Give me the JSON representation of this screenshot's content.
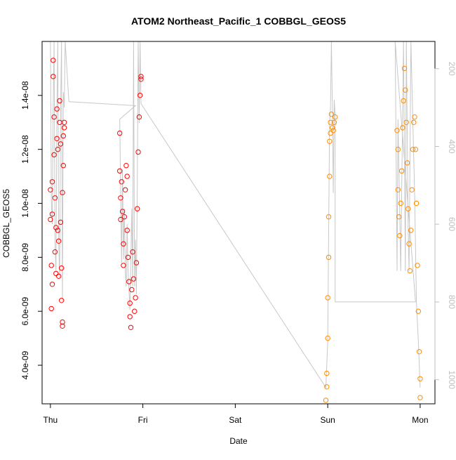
{
  "chart_data": {
    "type": "scatter",
    "title": "ATOM2 Northeast_Pacific_1 COBBGL_GEOS5",
    "xlabel": "Date",
    "ylabel": "COBBGL_GEOS5",
    "x_ticks": [
      {
        "label": "Thu",
        "value": 0
      },
      {
        "label": "Fri",
        "value": 1
      },
      {
        "label": "Sat",
        "value": 2
      },
      {
        "label": "Sun",
        "value": 3
      },
      {
        "label": "Mon",
        "value": 4
      }
    ],
    "x_unit": "days since Thursday 00:00",
    "xlim": [
      -0.09,
      4.16
    ],
    "y_left": {
      "ticks": [
        {
          "label": "4.0e-09",
          "value": 4e-09
        },
        {
          "label": "6.0e-09",
          "value": 6e-09
        },
        {
          "label": "8.0e-09",
          "value": 8e-09
        },
        {
          "label": "1.0e-08",
          "value": 1e-08
        },
        {
          "label": "1.2e-08",
          "value": 1.2e-08
        },
        {
          "label": "1.4e-08",
          "value": 1.4e-08
        }
      ],
      "ylim": [
        2.57e-09,
        1.6e-08
      ]
    },
    "y_right": {
      "label": "",
      "ticks": [
        {
          "label": "200",
          "value": 200
        },
        {
          "label": "400",
          "value": 400
        },
        {
          "label": "600",
          "value": 600
        },
        {
          "label": "800",
          "value": 800
        },
        {
          "label": "1000",
          "value": 1000
        }
      ],
      "ylim": [
        1062,
        130
      ],
      "color": "#bfbfbf"
    },
    "grid": false,
    "legend": "none",
    "colors": {
      "series_red": "#ff0000",
      "series_orange": "#ff8c00",
      "altitude_line": "#c8c8c8",
      "axis": "#000000"
    },
    "series": [
      {
        "color": "#ff0000",
        "values": [
          [
            0.0,
            9.4e-09
          ],
          [
            0.0,
            1.05e-08
          ],
          [
            0.01,
            7.7e-09
          ],
          [
            0.01,
            6.1e-09
          ],
          [
            0.02,
            7e-09
          ],
          [
            0.02,
            9.6e-09
          ],
          [
            0.02,
            1.08e-08
          ],
          [
            0.03,
            1.53e-08
          ],
          [
            0.03,
            1.47e-08
          ],
          [
            0.04,
            1.32e-08
          ],
          [
            0.04,
            1.18e-08
          ],
          [
            0.05,
            1.02e-08
          ],
          [
            0.05,
            8.2e-09
          ],
          [
            0.06,
            7.4e-09
          ],
          [
            0.06,
            9.1e-09
          ],
          [
            0.07,
            1.24e-08
          ],
          [
            0.07,
            1.35e-08
          ],
          [
            0.08,
            1.2e-08
          ],
          [
            0.08,
            9e-09
          ],
          [
            0.09,
            7.3e-09
          ],
          [
            0.09,
            8.6e-09
          ],
          [
            0.1,
            1.3e-08
          ],
          [
            0.1,
            1.38e-08
          ],
          [
            0.11,
            1.22e-08
          ],
          [
            0.11,
            9.3e-09
          ],
          [
            0.12,
            7.6e-09
          ],
          [
            0.12,
            6.4e-09
          ],
          [
            0.13,
            5.6e-09
          ],
          [
            0.13,
            5.45e-09
          ],
          [
            0.13,
            1.04e-08
          ],
          [
            0.14,
            1.14e-08
          ],
          [
            0.14,
            1.25e-08
          ],
          [
            0.15,
            1.28e-08
          ],
          [
            0.15,
            1.3e-08
          ],
          [
            0.75,
            1.26e-08
          ],
          [
            0.75,
            1.12e-08
          ],
          [
            0.76,
            1.02e-08
          ],
          [
            0.76,
            9.4e-09
          ],
          [
            0.77,
            1.08e-08
          ],
          [
            0.78,
            9.7e-09
          ],
          [
            0.79,
            8.5e-09
          ],
          [
            0.79,
            7.7e-09
          ],
          [
            0.8,
            9.5e-09
          ],
          [
            0.81,
            1.05e-08
          ],
          [
            0.82,
            1.14e-08
          ],
          [
            0.83,
            1.1e-08
          ],
          [
            0.83,
            9e-09
          ],
          [
            0.84,
            8e-09
          ],
          [
            0.85,
            7.1e-09
          ],
          [
            0.86,
            6.3e-09
          ],
          [
            0.86,
            5.8e-09
          ],
          [
            0.87,
            5.4e-09
          ],
          [
            0.88,
            6.8e-09
          ],
          [
            0.89,
            8.2e-09
          ],
          [
            0.9,
            7.2e-09
          ],
          [
            0.91,
            6e-09
          ],
          [
            0.92,
            6.5e-09
          ],
          [
            0.93,
            7.8e-09
          ],
          [
            0.94,
            9.8e-09
          ],
          [
            0.95,
            1.19e-08
          ],
          [
            0.96,
            1.32e-08
          ],
          [
            0.97,
            1.4e-08
          ],
          [
            0.98,
            1.47e-08
          ],
          [
            0.98,
            1.46e-08
          ]
        ]
      },
      {
        "color": "#ff8c00",
        "values": [
          [
            2.98,
            2.7e-09
          ],
          [
            2.99,
            3.2e-09
          ],
          [
            2.99,
            3.7e-09
          ],
          [
            3.0,
            5e-09
          ],
          [
            3.0,
            6.5e-09
          ],
          [
            3.01,
            8e-09
          ],
          [
            3.01,
            9.5e-09
          ],
          [
            3.02,
            1.1e-08
          ],
          [
            3.02,
            1.23e-08
          ],
          [
            3.03,
            1.26e-08
          ],
          [
            3.03,
            1.3e-08
          ],
          [
            3.04,
            1.33e-08
          ],
          [
            3.05,
            1.28e-08
          ],
          [
            3.06,
            1.27e-08
          ],
          [
            3.07,
            1.3e-08
          ],
          [
            3.08,
            1.32e-08
          ],
          [
            3.75,
            1.27e-08
          ],
          [
            3.76,
            1.2e-08
          ],
          [
            3.76,
            1.05e-08
          ],
          [
            3.77,
            9.5e-09
          ],
          [
            3.78,
            8.8e-09
          ],
          [
            3.79,
            1e-08
          ],
          [
            3.8,
            1.12e-08
          ],
          [
            3.81,
            1.28e-08
          ],
          [
            3.82,
            1.38e-08
          ],
          [
            3.83,
            1.5e-08
          ],
          [
            3.84,
            1.42e-08
          ],
          [
            3.85,
            1.3e-08
          ],
          [
            3.86,
            1.15e-08
          ],
          [
            3.87,
            9.8e-09
          ],
          [
            3.88,
            8.5e-09
          ],
          [
            3.89,
            7.5e-09
          ],
          [
            3.9,
            9e-09
          ],
          [
            3.91,
            1.05e-08
          ],
          [
            3.92,
            1.2e-08
          ],
          [
            3.93,
            1.3e-08
          ],
          [
            3.94,
            1.32e-08
          ],
          [
            3.95,
            1.2e-08
          ],
          [
            3.96,
            1e-08
          ],
          [
            3.97,
            7.7e-09
          ],
          [
            3.98,
            6e-09
          ],
          [
            3.99,
            4.5e-09
          ],
          [
            4.0,
            3.5e-09
          ],
          [
            4.0,
            2.8e-09
          ]
        ]
      }
    ],
    "altitude_line": [
      [
        0.0,
        130
      ],
      [
        0.01,
        540
      ],
      [
        0.02,
        600
      ],
      [
        0.03,
        300
      ],
      [
        0.04,
        130
      ],
      [
        0.05,
        650
      ],
      [
        0.06,
        720
      ],
      [
        0.07,
        310
      ],
      [
        0.08,
        130
      ],
      [
        0.09,
        650
      ],
      [
        0.1,
        740
      ],
      [
        0.11,
        300
      ],
      [
        0.12,
        130
      ],
      [
        0.13,
        800
      ],
      [
        0.14,
        260
      ],
      [
        0.15,
        300
      ],
      [
        0.16,
        130
      ],
      [
        0.2,
        285
      ],
      [
        0.92,
        295
      ],
      [
        0.75,
        330
      ],
      [
        0.76,
        520
      ],
      [
        0.77,
        700
      ],
      [
        0.78,
        460
      ],
      [
        0.79,
        690
      ],
      [
        0.8,
        560
      ],
      [
        0.81,
        720
      ],
      [
        0.82,
        760
      ],
      [
        0.83,
        600
      ],
      [
        0.84,
        720
      ],
      [
        0.86,
        820
      ],
      [
        0.88,
        560
      ],
      [
        0.89,
        760
      ],
      [
        0.9,
        130
      ],
      [
        0.91,
        760
      ],
      [
        0.92,
        640
      ],
      [
        0.93,
        780
      ],
      [
        0.94,
        500
      ],
      [
        0.95,
        130
      ],
      [
        0.96,
        340
      ],
      [
        0.97,
        130
      ],
      [
        0.98,
        290
      ],
      [
        2.98,
        1020
      ],
      [
        3.0,
        900
      ],
      [
        3.02,
        340
      ],
      [
        3.03,
        300
      ],
      [
        3.04,
        130
      ],
      [
        3.05,
        290
      ],
      [
        3.06,
        520
      ],
      [
        3.07,
        280
      ],
      [
        3.08,
        320
      ],
      [
        3.08,
        800
      ],
      [
        3.95,
        800
      ],
      [
        3.73,
        130
      ],
      [
        3.75,
        720
      ],
      [
        3.76,
        330
      ],
      [
        3.78,
        580
      ],
      [
        3.79,
        720
      ],
      [
        3.81,
        320
      ],
      [
        3.82,
        130
      ],
      [
        3.84,
        720
      ],
      [
        3.85,
        130
      ],
      [
        3.86,
        360
      ],
      [
        3.87,
        620
      ],
      [
        3.88,
        720
      ],
      [
        3.89,
        430
      ],
      [
        3.9,
        130
      ],
      [
        3.92,
        330
      ],
      [
        3.94,
        520
      ],
      [
        3.96,
        800
      ],
      [
        3.98,
        900
      ],
      [
        4.0,
        1020
      ]
    ]
  }
}
